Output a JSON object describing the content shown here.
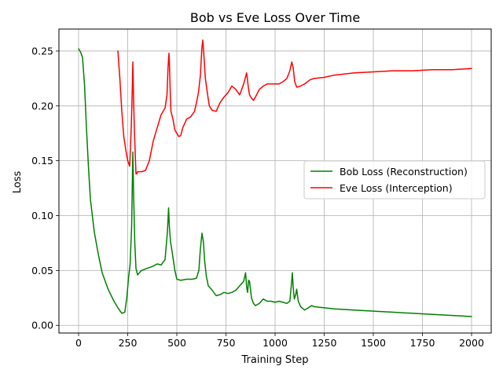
{
  "chart_data": {
    "type": "line",
    "title": "Bob vs Eve Loss Over Time",
    "xlabel": "Training Step",
    "ylabel": "Loss",
    "xlim": [
      -100,
      2100
    ],
    "ylim": [
      -0.007,
      0.27
    ],
    "xticks": [
      0,
      250,
      500,
      750,
      1000,
      1250,
      1500,
      1750,
      2000
    ],
    "xtick_labels": [
      "0",
      "250",
      "500",
      "750",
      "1000",
      "1250",
      "1500",
      "1750",
      "2000"
    ],
    "yticks": [
      0.0,
      0.05,
      0.1,
      0.15,
      0.2,
      0.25
    ],
    "ytick_labels": [
      "0.00",
      "0.05",
      "0.10",
      "0.15",
      "0.20",
      "0.25"
    ],
    "grid": true,
    "legend_position": "center-right",
    "series": [
      {
        "name": "Bob Loss (Reconstruction)",
        "color": "#008000",
        "x": [
          0,
          10,
          20,
          30,
          40,
          50,
          60,
          80,
          100,
          120,
          150,
          180,
          200,
          220,
          235,
          245,
          255,
          262,
          270,
          276,
          280,
          286,
          292,
          300,
          320,
          350,
          380,
          400,
          420,
          440,
          452,
          458,
          462,
          468,
          475,
          490,
          500,
          520,
          550,
          580,
          600,
          612,
          620,
          628,
          635,
          642,
          650,
          660,
          680,
          700,
          720,
          740,
          760,
          780,
          800,
          820,
          840,
          850,
          855,
          860,
          865,
          870,
          875,
          880,
          890,
          900,
          920,
          940,
          960,
          980,
          1000,
          1020,
          1040,
          1060,
          1075,
          1082,
          1088,
          1092,
          1098,
          1105,
          1110,
          1118,
          1130,
          1150,
          1170,
          1185,
          1200,
          1250,
          1300,
          1400,
          1500,
          1600,
          1700,
          1800,
          1900,
          2000
        ],
        "y": [
          0.252,
          0.249,
          0.244,
          0.22,
          0.18,
          0.145,
          0.115,
          0.085,
          0.065,
          0.048,
          0.033,
          0.022,
          0.016,
          0.011,
          0.012,
          0.025,
          0.045,
          0.055,
          0.09,
          0.158,
          0.12,
          0.075,
          0.052,
          0.046,
          0.05,
          0.052,
          0.054,
          0.056,
          0.055,
          0.06,
          0.085,
          0.107,
          0.09,
          0.076,
          0.068,
          0.05,
          0.042,
          0.041,
          0.042,
          0.042,
          0.043,
          0.05,
          0.07,
          0.084,
          0.076,
          0.058,
          0.045,
          0.036,
          0.032,
          0.027,
          0.028,
          0.03,
          0.029,
          0.03,
          0.032,
          0.036,
          0.04,
          0.048,
          0.035,
          0.03,
          0.041,
          0.04,
          0.032,
          0.025,
          0.02,
          0.018,
          0.02,
          0.024,
          0.022,
          0.022,
          0.021,
          0.022,
          0.021,
          0.02,
          0.022,
          0.035,
          0.048,
          0.035,
          0.024,
          0.028,
          0.033,
          0.022,
          0.017,
          0.014,
          0.016,
          0.018,
          0.017,
          0.016,
          0.015,
          0.014,
          0.013,
          0.012,
          0.011,
          0.01,
          0.009,
          0.008
        ]
      },
      {
        "name": "Eve Loss (Interception)",
        "color": "#ff0000",
        "x": [
          200,
          210,
          220,
          230,
          240,
          250,
          260,
          268,
          273,
          276,
          280,
          284,
          288,
          292,
          296,
          300,
          320,
          340,
          360,
          380,
          400,
          420,
          440,
          450,
          455,
          460,
          462,
          466,
          470,
          480,
          490,
          500,
          510,
          520,
          530,
          550,
          570,
          590,
          600,
          610,
          620,
          627,
          632,
          638,
          645,
          655,
          665,
          680,
          700,
          720,
          740,
          760,
          780,
          800,
          820,
          840,
          855,
          865,
          870,
          880,
          890,
          900,
          920,
          940,
          960,
          980,
          1000,
          1020,
          1040,
          1060,
          1075,
          1085,
          1092,
          1100,
          1110,
          1130,
          1150,
          1180,
          1200,
          1250,
          1300,
          1400,
          1500,
          1600,
          1700,
          1800,
          1900,
          2000
        ],
        "y": [
          0.25,
          0.225,
          0.195,
          0.172,
          0.16,
          0.15,
          0.145,
          0.18,
          0.215,
          0.24,
          0.205,
          0.178,
          0.158,
          0.138,
          0.138,
          0.14,
          0.14,
          0.141,
          0.15,
          0.168,
          0.18,
          0.192,
          0.198,
          0.21,
          0.235,
          0.248,
          0.24,
          0.215,
          0.195,
          0.188,
          0.178,
          0.175,
          0.172,
          0.173,
          0.18,
          0.188,
          0.19,
          0.195,
          0.203,
          0.212,
          0.228,
          0.252,
          0.26,
          0.245,
          0.225,
          0.212,
          0.2,
          0.196,
          0.195,
          0.203,
          0.208,
          0.212,
          0.218,
          0.215,
          0.21,
          0.22,
          0.23,
          0.215,
          0.21,
          0.207,
          0.205,
          0.208,
          0.215,
          0.218,
          0.22,
          0.22,
          0.22,
          0.22,
          0.222,
          0.225,
          0.232,
          0.24,
          0.235,
          0.222,
          0.217,
          0.218,
          0.22,
          0.224,
          0.225,
          0.226,
          0.228,
          0.23,
          0.231,
          0.232,
          0.232,
          0.233,
          0.233,
          0.234
        ]
      }
    ]
  }
}
